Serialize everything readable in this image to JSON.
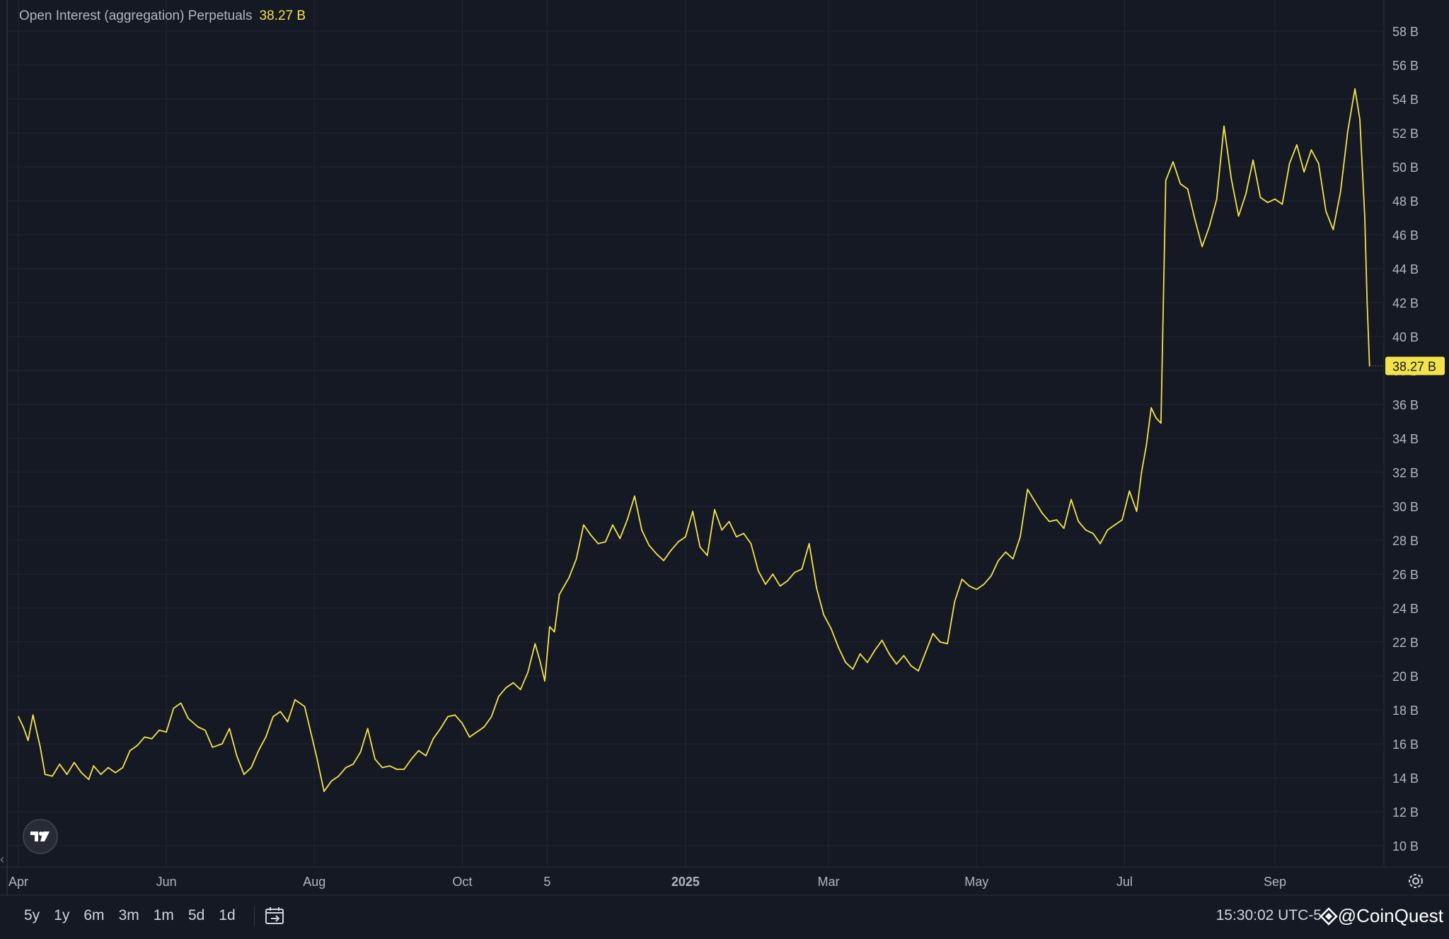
{
  "legend": {
    "title": "Open Interest (aggregation) Perpetuals",
    "value": "38.27 B"
  },
  "last_value_label": "38.27 B",
  "bottom_bar": {
    "ranges": [
      "5y",
      "1y",
      "6m",
      "3m",
      "1m",
      "5d",
      "1d"
    ],
    "clock": "15:30:02 UTC-5",
    "watermark": "@CoinQuest"
  },
  "icons": [
    "tradingview-logo-icon",
    "go-to-date-icon",
    "settings-gear-icon",
    "chevron-left-icon",
    "watermark-logo-icon"
  ],
  "colors": {
    "background": "#151924",
    "line": "#f2e34b",
    "grid": "#232733",
    "text": "#b2b5be"
  },
  "chart_data": {
    "type": "line",
    "title": "Open Interest (aggregation) Perpetuals",
    "y_unit": "B",
    "ylim": [
      9,
      60
    ],
    "y_ticks": [
      "10 B",
      "12 B",
      "14 B",
      "16 B",
      "18 B",
      "20 B",
      "22 B",
      "24 B",
      "26 B",
      "28 B",
      "30 B",
      "32 B",
      "34 B",
      "36 B",
      "38 B",
      "40 B",
      "42 B",
      "44 B",
      "46 B",
      "48 B",
      "50 B",
      "52 B",
      "54 B",
      "56 B",
      "58 B"
    ],
    "x_ticks": [
      {
        "label": "Apr",
        "date": "2024-04-01"
      },
      {
        "label": "Jun",
        "date": "2024-06-01"
      },
      {
        "label": "Aug",
        "date": "2024-08-01"
      },
      {
        "label": "Oct",
        "date": "2024-10-01"
      },
      {
        "label": "5",
        "date": "2024-11-05"
      },
      {
        "label": "2025",
        "date": "2025-01-01",
        "bold": true
      },
      {
        "label": "Mar",
        "date": "2025-03-01"
      },
      {
        "label": "May",
        "date": "2025-05-01"
      },
      {
        "label": "Jul",
        "date": "2025-07-01"
      },
      {
        "label": "Sep",
        "date": "2025-09-01"
      }
    ],
    "grid": true,
    "series": [
      {
        "points": [
          [
            "2024-04-01",
            17.6
          ],
          [
            "2024-04-03",
            17.0
          ],
          [
            "2024-04-05",
            16.2
          ],
          [
            "2024-04-07",
            17.7
          ],
          [
            "2024-04-10",
            15.8
          ],
          [
            "2024-04-12",
            14.2
          ],
          [
            "2024-04-15",
            14.1
          ],
          [
            "2024-04-18",
            14.8
          ],
          [
            "2024-04-21",
            14.2
          ],
          [
            "2024-04-24",
            14.9
          ],
          [
            "2024-04-27",
            14.3
          ],
          [
            "2024-04-30",
            13.9
          ],
          [
            "2024-05-02",
            14.7
          ],
          [
            "2024-05-05",
            14.2
          ],
          [
            "2024-05-08",
            14.6
          ],
          [
            "2024-05-11",
            14.3
          ],
          [
            "2024-05-14",
            14.6
          ],
          [
            "2024-05-17",
            15.6
          ],
          [
            "2024-05-20",
            15.9
          ],
          [
            "2024-05-23",
            16.4
          ],
          [
            "2024-05-26",
            16.3
          ],
          [
            "2024-05-29",
            16.8
          ],
          [
            "2024-06-01",
            16.7
          ],
          [
            "2024-06-04",
            18.1
          ],
          [
            "2024-06-07",
            18.4
          ],
          [
            "2024-06-10",
            17.5
          ],
          [
            "2024-06-14",
            17.0
          ],
          [
            "2024-06-17",
            16.8
          ],
          [
            "2024-06-20",
            15.8
          ],
          [
            "2024-06-24",
            16.0
          ],
          [
            "2024-06-27",
            16.9
          ],
          [
            "2024-06-30",
            15.3
          ],
          [
            "2024-07-03",
            14.2
          ],
          [
            "2024-07-06",
            14.6
          ],
          [
            "2024-07-09",
            15.6
          ],
          [
            "2024-07-12",
            16.4
          ],
          [
            "2024-07-15",
            17.6
          ],
          [
            "2024-07-18",
            17.9
          ],
          [
            "2024-07-21",
            17.3
          ],
          [
            "2024-07-24",
            18.6
          ],
          [
            "2024-07-28",
            18.2
          ],
          [
            "2024-07-31",
            16.4
          ],
          [
            "2024-08-02",
            15.2
          ],
          [
            "2024-08-05",
            13.2
          ],
          [
            "2024-08-08",
            13.8
          ],
          [
            "2024-08-11",
            14.1
          ],
          [
            "2024-08-14",
            14.6
          ],
          [
            "2024-08-17",
            14.8
          ],
          [
            "2024-08-20",
            15.5
          ],
          [
            "2024-08-23",
            16.9
          ],
          [
            "2024-08-26",
            15.1
          ],
          [
            "2024-08-29",
            14.6
          ],
          [
            "2024-09-01",
            14.7
          ],
          [
            "2024-09-04",
            14.5
          ],
          [
            "2024-09-07",
            14.5
          ],
          [
            "2024-09-10",
            15.1
          ],
          [
            "2024-09-13",
            15.6
          ],
          [
            "2024-09-16",
            15.3
          ],
          [
            "2024-09-19",
            16.3
          ],
          [
            "2024-09-22",
            16.9
          ],
          [
            "2024-09-25",
            17.6
          ],
          [
            "2024-09-28",
            17.7
          ],
          [
            "2024-10-01",
            17.2
          ],
          [
            "2024-10-04",
            16.4
          ],
          [
            "2024-10-07",
            16.7
          ],
          [
            "2024-10-10",
            17.0
          ],
          [
            "2024-10-13",
            17.6
          ],
          [
            "2024-10-16",
            18.8
          ],
          [
            "2024-10-19",
            19.3
          ],
          [
            "2024-10-22",
            19.6
          ],
          [
            "2024-10-25",
            19.2
          ],
          [
            "2024-10-28",
            20.2
          ],
          [
            "2024-10-31",
            21.9
          ],
          [
            "2024-11-02",
            20.9
          ],
          [
            "2024-11-04",
            19.7
          ],
          [
            "2024-11-06",
            22.9
          ],
          [
            "2024-11-08",
            22.6
          ],
          [
            "2024-11-10",
            24.8
          ],
          [
            "2024-11-12",
            25.3
          ],
          [
            "2024-11-14",
            25.8
          ],
          [
            "2024-11-17",
            26.9
          ],
          [
            "2024-11-20",
            28.9
          ],
          [
            "2024-11-23",
            28.3
          ],
          [
            "2024-11-26",
            27.8
          ],
          [
            "2024-11-29",
            27.9
          ],
          [
            "2024-12-02",
            28.9
          ],
          [
            "2024-12-05",
            28.1
          ],
          [
            "2024-12-08",
            29.2
          ],
          [
            "2024-12-11",
            30.6
          ],
          [
            "2024-12-14",
            28.6
          ],
          [
            "2024-12-17",
            27.7
          ],
          [
            "2024-12-20",
            27.2
          ],
          [
            "2024-12-23",
            26.8
          ],
          [
            "2024-12-26",
            27.4
          ],
          [
            "2024-12-29",
            27.9
          ],
          [
            "2025-01-01",
            28.2
          ],
          [
            "2025-01-04",
            29.7
          ],
          [
            "2025-01-07",
            27.6
          ],
          [
            "2025-01-10",
            27.1
          ],
          [
            "2025-01-13",
            29.8
          ],
          [
            "2025-01-16",
            28.6
          ],
          [
            "2025-01-19",
            29.1
          ],
          [
            "2025-01-22",
            28.2
          ],
          [
            "2025-01-25",
            28.4
          ],
          [
            "2025-01-28",
            27.8
          ],
          [
            "2025-01-31",
            26.2
          ],
          [
            "2025-02-03",
            25.4
          ],
          [
            "2025-02-06",
            26.0
          ],
          [
            "2025-02-09",
            25.3
          ],
          [
            "2025-02-12",
            25.6
          ],
          [
            "2025-02-15",
            26.1
          ],
          [
            "2025-02-18",
            26.3
          ],
          [
            "2025-02-21",
            27.8
          ],
          [
            "2025-02-24",
            25.2
          ],
          [
            "2025-02-27",
            23.6
          ],
          [
            "2025-03-02",
            22.8
          ],
          [
            "2025-03-05",
            21.7
          ],
          [
            "2025-03-08",
            20.8
          ],
          [
            "2025-03-11",
            20.4
          ],
          [
            "2025-03-14",
            21.3
          ],
          [
            "2025-03-17",
            20.8
          ],
          [
            "2025-03-20",
            21.5
          ],
          [
            "2025-03-23",
            22.1
          ],
          [
            "2025-03-26",
            21.3
          ],
          [
            "2025-03-29",
            20.7
          ],
          [
            "2025-04-01",
            21.2
          ],
          [
            "2025-04-04",
            20.6
          ],
          [
            "2025-04-07",
            20.3
          ],
          [
            "2025-04-10",
            21.4
          ],
          [
            "2025-04-13",
            22.5
          ],
          [
            "2025-04-16",
            22.0
          ],
          [
            "2025-04-19",
            21.9
          ],
          [
            "2025-04-22",
            24.4
          ],
          [
            "2025-04-25",
            25.7
          ],
          [
            "2025-04-28",
            25.3
          ],
          [
            "2025-05-01",
            25.1
          ],
          [
            "2025-05-04",
            25.4
          ],
          [
            "2025-05-07",
            25.9
          ],
          [
            "2025-05-10",
            26.8
          ],
          [
            "2025-05-13",
            27.3
          ],
          [
            "2025-05-16",
            26.9
          ],
          [
            "2025-05-19",
            28.2
          ],
          [
            "2025-05-22",
            31.0
          ],
          [
            "2025-05-25",
            30.3
          ],
          [
            "2025-05-28",
            29.6
          ],
          [
            "2025-05-31",
            29.1
          ],
          [
            "2025-06-03",
            29.2
          ],
          [
            "2025-06-06",
            28.7
          ],
          [
            "2025-06-09",
            30.4
          ],
          [
            "2025-06-12",
            29.1
          ],
          [
            "2025-06-15",
            28.6
          ],
          [
            "2025-06-18",
            28.4
          ],
          [
            "2025-06-21",
            27.8
          ],
          [
            "2025-06-24",
            28.6
          ],
          [
            "2025-06-27",
            28.9
          ],
          [
            "2025-06-30",
            29.2
          ],
          [
            "2025-07-03",
            30.9
          ],
          [
            "2025-07-06",
            29.7
          ],
          [
            "2025-07-08",
            32.0
          ],
          [
            "2025-07-10",
            33.6
          ],
          [
            "2025-07-12",
            35.8
          ],
          [
            "2025-07-14",
            35.2
          ],
          [
            "2025-07-16",
            34.9
          ],
          [
            "2025-07-18",
            49.2
          ],
          [
            "2025-07-21",
            50.3
          ],
          [
            "2025-07-24",
            49.0
          ],
          [
            "2025-07-27",
            48.7
          ],
          [
            "2025-07-30",
            46.9
          ],
          [
            "2025-08-02",
            45.3
          ],
          [
            "2025-08-05",
            46.5
          ],
          [
            "2025-08-08",
            48.1
          ],
          [
            "2025-08-11",
            52.4
          ],
          [
            "2025-08-14",
            49.3
          ],
          [
            "2025-08-17",
            47.1
          ],
          [
            "2025-08-20",
            48.4
          ],
          [
            "2025-08-23",
            50.4
          ],
          [
            "2025-08-26",
            48.2
          ],
          [
            "2025-08-29",
            47.9
          ],
          [
            "2025-09-01",
            48.1
          ],
          [
            "2025-09-04",
            47.8
          ],
          [
            "2025-09-07",
            50.2
          ],
          [
            "2025-09-10",
            51.3
          ],
          [
            "2025-09-13",
            49.7
          ],
          [
            "2025-09-16",
            51.0
          ],
          [
            "2025-09-19",
            50.2
          ],
          [
            "2025-09-22",
            47.4
          ],
          [
            "2025-09-25",
            46.3
          ],
          [
            "2025-09-28",
            48.5
          ],
          [
            "2025-10-01",
            52.1
          ],
          [
            "2025-10-04",
            54.6
          ],
          [
            "2025-10-06",
            52.8
          ],
          [
            "2025-10-08",
            47.1
          ],
          [
            "2025-10-09",
            42.0
          ],
          [
            "2025-10-10",
            38.27
          ]
        ]
      }
    ]
  }
}
